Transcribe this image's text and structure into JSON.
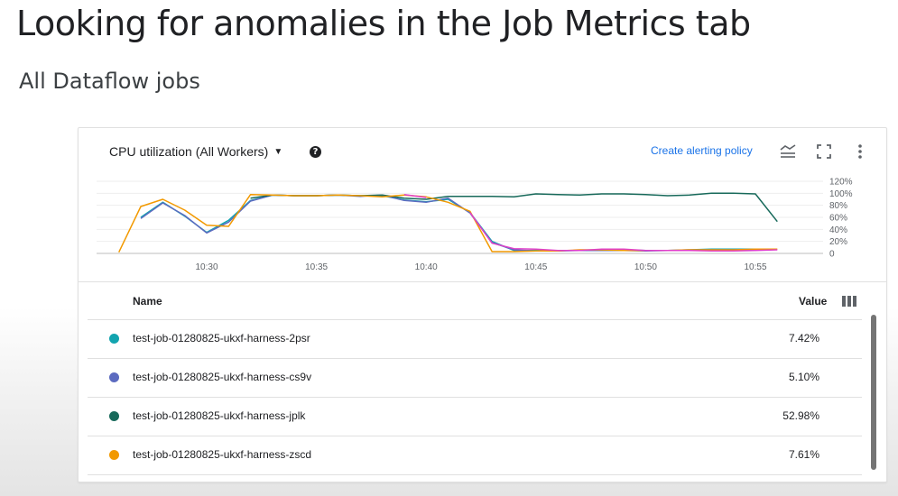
{
  "slide": {
    "title": "Looking for anomalies in the Job Metrics tab",
    "subtitle": "All Dataflow jobs"
  },
  "panel": {
    "metric_selector_label": "CPU utilization (All Workers)",
    "help_icon": "help-circle-icon",
    "alert_link": "Create alerting policy",
    "toolbar_icons": [
      "legend-toggle-icon",
      "fullscreen-icon",
      "more-vert-icon"
    ]
  },
  "chart_data": {
    "type": "line",
    "title": "",
    "xlabel": "",
    "ylabel": "",
    "x_ticks": [
      "10:30",
      "10:35",
      "10:40",
      "10:45",
      "10:50",
      "10:55"
    ],
    "y_ticks": [
      "120%",
      "100%",
      "80%",
      "60%",
      "40%",
      "20%",
      "0"
    ],
    "ylim": [
      0,
      120
    ],
    "grid": true,
    "x": [
      "10:26",
      "10:27",
      "10:28",
      "10:29",
      "10:30",
      "10:31",
      "10:32",
      "10:33",
      "10:34",
      "10:35",
      "10:36",
      "10:37",
      "10:38",
      "10:39",
      "10:40",
      "10:41",
      "10:42",
      "10:43",
      "10:44",
      "10:45",
      "10:46",
      "10:47",
      "10:48",
      "10:49",
      "10:50",
      "10:51",
      "10:52",
      "10:53",
      "10:54",
      "10:55",
      "10:56"
    ],
    "series": [
      {
        "name": "test-job-01280825-ukxf-harness-2psr",
        "color": "#12a4af",
        "values": [
          null,
          60,
          85,
          62,
          35,
          55,
          88,
          97,
          96,
          96,
          97,
          96,
          96,
          89,
          86,
          90,
          68,
          20,
          5,
          5,
          5,
          5,
          6,
          6,
          5,
          5,
          6,
          7,
          7,
          7,
          null
        ]
      },
      {
        "name": "test-job-01280825-ukxf-harness-cs9v",
        "color": "#5c6bc0",
        "values": [
          null,
          58,
          84,
          63,
          34,
          52,
          87,
          97,
          96,
          96,
          97,
          95,
          97,
          88,
          85,
          92,
          67,
          18,
          6,
          4,
          4,
          5,
          5,
          5,
          4,
          5,
          5,
          5,
          5,
          5,
          null
        ]
      },
      {
        "name": "test-job-01280825-ukxf-harness-jplk",
        "color": "#17695a",
        "values": [
          null,
          null,
          85,
          null,
          null,
          null,
          92,
          97,
          96,
          96,
          97,
          96,
          97,
          92,
          90,
          95,
          95,
          95,
          94,
          99,
          98,
          97,
          99,
          99,
          98,
          96,
          97,
          100,
          100,
          99,
          53
        ]
      },
      {
        "name": "test-job-01280825-ukxf-harness-zscd",
        "color": "#f29900",
        "values": [
          2,
          78,
          90,
          72,
          47,
          45,
          98,
          97,
          96,
          96,
          97,
          96,
          94,
          97,
          94,
          85,
          70,
          3,
          3,
          4,
          4,
          6,
          6,
          5,
          5,
          5,
          6,
          6,
          6,
          7,
          7
        ]
      },
      {
        "name": "",
        "color": "#e040c9",
        "values": [
          null,
          null,
          null,
          null,
          null,
          41,
          null,
          null,
          null,
          null,
          null,
          null,
          null,
          98,
          93,
          null,
          68,
          17,
          8,
          7,
          5,
          5,
          7,
          7,
          5,
          5,
          5,
          4,
          4,
          5,
          6
        ]
      }
    ]
  },
  "table": {
    "col_name": "Name",
    "col_value": "Value",
    "columns_icon": "view-column-icon",
    "rows": [
      {
        "name": "test-job-01280825-ukxf-harness-2psr",
        "value": "7.42%",
        "color": "#12a4af"
      },
      {
        "name": "test-job-01280825-ukxf-harness-cs9v",
        "value": "5.10%",
        "color": "#5c6bc0"
      },
      {
        "name": "test-job-01280825-ukxf-harness-jplk",
        "value": "52.98%",
        "color": "#17695a"
      },
      {
        "name": "test-job-01280825-ukxf-harness-zscd",
        "value": "7.61%",
        "color": "#f29900"
      }
    ]
  }
}
